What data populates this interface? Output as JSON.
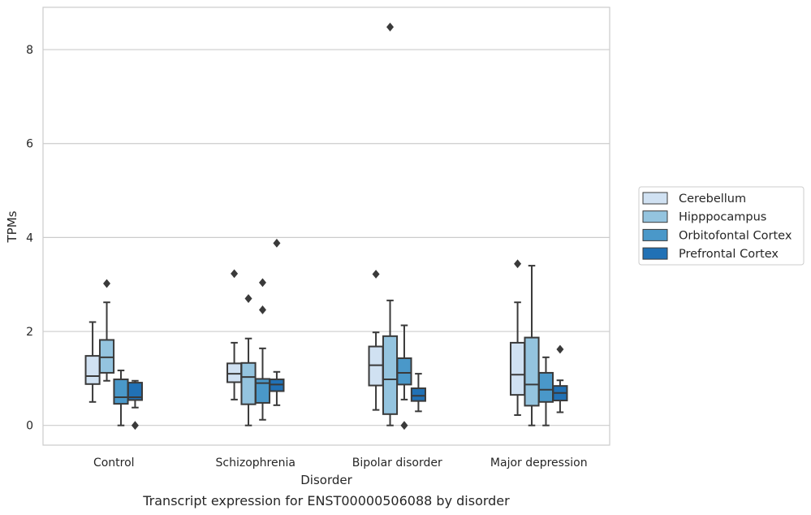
{
  "chart_data": {
    "type": "box",
    "title": "",
    "caption": "Transcript expression for ENST00000506088 by disorder",
    "xlabel": "Disorder",
    "ylabel": "TPMs",
    "ylim": [
      -0.42,
      8.9
    ],
    "yticks": [
      0,
      2,
      4,
      6,
      8
    ],
    "grid": "horizontal",
    "legend_position": "right",
    "categories": [
      "Control",
      "Schizophrenia",
      "Bipolar disorder",
      "Major depression"
    ],
    "series": [
      {
        "name": "Cerebellum",
        "color": "#d0e1f2",
        "boxes": [
          {
            "whisker_low": 0.5,
            "q1": 0.88,
            "median": 1.05,
            "q3": 1.48,
            "whisker_high": 2.2,
            "outliers": []
          },
          {
            "whisker_low": 0.55,
            "q1": 0.92,
            "median": 1.1,
            "q3": 1.32,
            "whisker_high": 1.76,
            "outliers": [
              3.23
            ]
          },
          {
            "whisker_low": 0.33,
            "q1": 0.85,
            "median": 1.28,
            "q3": 1.68,
            "whisker_high": 1.98,
            "outliers": [
              3.22
            ]
          },
          {
            "whisker_low": 0.22,
            "q1": 0.65,
            "median": 1.08,
            "q3": 1.76,
            "whisker_high": 2.62,
            "outliers": [
              3.44
            ]
          }
        ]
      },
      {
        "name": "Hipppocampus",
        "color": "#94c4df",
        "boxes": [
          {
            "whisker_low": 0.95,
            "q1": 1.12,
            "median": 1.45,
            "q3": 1.82,
            "whisker_high": 2.62,
            "outliers": [
              3.02
            ]
          },
          {
            "whisker_low": 0.0,
            "q1": 0.45,
            "median": 1.03,
            "q3": 1.33,
            "whisker_high": 1.85,
            "outliers": [
              2.7
            ]
          },
          {
            "whisker_low": 0.0,
            "q1": 0.24,
            "median": 0.98,
            "q3": 1.9,
            "whisker_high": 2.66,
            "outliers": [
              8.48
            ]
          },
          {
            "whisker_low": 0.0,
            "q1": 0.42,
            "median": 0.87,
            "q3": 1.87,
            "whisker_high": 3.4,
            "outliers": []
          }
        ]
      },
      {
        "name": "Orbitofontal Cortex",
        "color": "#4a98c9",
        "boxes": [
          {
            "whisker_low": 0.0,
            "q1": 0.46,
            "median": 0.6,
            "q3": 0.98,
            "whisker_high": 1.17,
            "outliers": []
          },
          {
            "whisker_low": 0.12,
            "q1": 0.48,
            "median": 0.9,
            "q3": 0.99,
            "whisker_high": 1.64,
            "outliers": [
              3.04,
              2.46
            ]
          },
          {
            "whisker_low": 0.55,
            "q1": 0.87,
            "median": 1.12,
            "q3": 1.43,
            "whisker_high": 2.13,
            "outliers": [
              0.0
            ]
          },
          {
            "whisker_low": 0.0,
            "q1": 0.5,
            "median": 0.76,
            "q3": 1.12,
            "whisker_high": 1.45,
            "outliers": []
          }
        ]
      },
      {
        "name": "Prefrontal Cortex",
        "color": "#2171b5",
        "boxes": [
          {
            "whisker_low": 0.38,
            "q1": 0.54,
            "median": 0.6,
            "q3": 0.91,
            "whisker_high": 0.95,
            "outliers": [
              0.0
            ]
          },
          {
            "whisker_low": 0.43,
            "q1": 0.73,
            "median": 0.87,
            "q3": 0.98,
            "whisker_high": 1.14,
            "outliers": [
              3.88
            ]
          },
          {
            "whisker_low": 0.3,
            "q1": 0.52,
            "median": 0.63,
            "q3": 0.79,
            "whisker_high": 1.1,
            "outliers": []
          },
          {
            "whisker_low": 0.28,
            "q1": 0.53,
            "median": 0.69,
            "q3": 0.84,
            "whisker_high": 0.96,
            "outliers": [
              1.62
            ]
          }
        ]
      }
    ]
  }
}
